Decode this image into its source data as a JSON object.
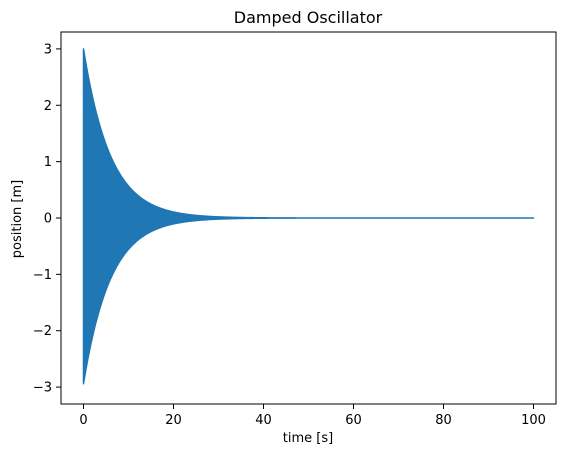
{
  "chart_data": {
    "type": "line",
    "title": "Damped Oscillator",
    "xlabel": "time [s]",
    "ylabel": "position [m]",
    "xlim": [
      -5,
      105
    ],
    "ylim": [
      -3.3,
      3.3
    ],
    "xticks": [
      0,
      20,
      40,
      60,
      80,
      100
    ],
    "yticks": [
      -3,
      -2,
      -1,
      0,
      1,
      2,
      3
    ],
    "xtick_labels": [
      "0",
      "20",
      "40",
      "60",
      "80",
      "100"
    ],
    "ytick_labels": [
      "−3",
      "−2",
      "−1",
      "0",
      "1",
      "2",
      "3"
    ],
    "grid": false,
    "legend": "none",
    "series": [
      {
        "color": "#1f77b4",
        "form": "x(t) = A·e^(−t/τ)·cos(ωt), dense oscillation filling the decay envelope",
        "amplitude": 3,
        "decay_time": 6,
        "x": [
          0,
          100
        ],
        "envelope_x": [
          0,
          2,
          4,
          6,
          8,
          10,
          12,
          15,
          20,
          25,
          30,
          35,
          40,
          50,
          60,
          80,
          100
        ],
        "envelope_y": [
          3.0,
          2.15,
          1.54,
          1.1,
          0.79,
          0.57,
          0.41,
          0.25,
          0.11,
          0.047,
          0.02,
          0.009,
          0.004,
          0.001,
          0.0,
          0.0,
          0.0
        ]
      }
    ]
  }
}
